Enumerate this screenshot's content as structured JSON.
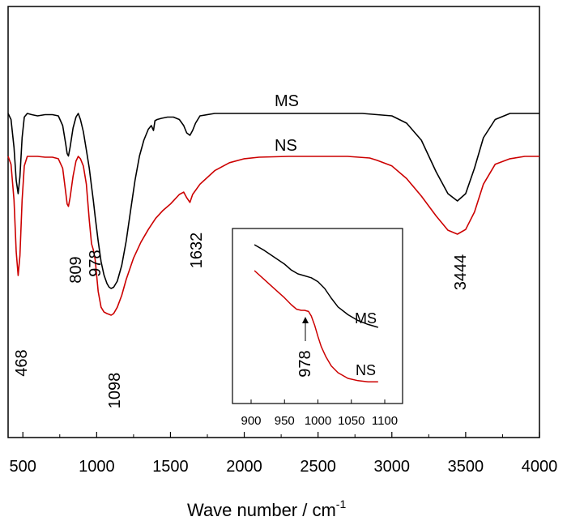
{
  "chart_data": {
    "type": "line",
    "xlabel": "Wave number / cm",
    "xlabel_sup": "-1",
    "ylabel": "",
    "xlim": [
      400,
      4000
    ],
    "grid": false,
    "legend": "none",
    "x_ticks": [
      "500",
      "1000",
      "1500",
      "2000",
      "2500",
      "3000",
      "3500",
      "4000"
    ],
    "series": [
      {
        "name": "MS",
        "color": "#000000",
        "x": [
          400,
          420,
          440,
          455,
          468,
          480,
          495,
          510,
          530,
          560,
          600,
          650,
          700,
          740,
          770,
          790,
          800,
          809,
          820,
          840,
          860,
          875,
          890,
          910,
          930,
          950,
          965,
          978,
          990,
          1010,
          1030,
          1050,
          1070,
          1085,
          1098,
          1115,
          1140,
          1170,
          1200,
          1230,
          1260,
          1290,
          1320,
          1350,
          1370,
          1385,
          1395,
          1410,
          1440,
          1480,
          1520,
          1560,
          1590,
          1610,
          1632,
          1650,
          1670,
          1700,
          1800,
          2000,
          2300,
          2500,
          2800,
          2900,
          3000,
          3100,
          3200,
          3300,
          3380,
          3444,
          3500,
          3560,
          3620,
          3700,
          3800,
          3900,
          4000
        ],
        "y": [
          0.0,
          0.05,
          0.28,
          0.55,
          0.66,
          0.52,
          0.2,
          0.03,
          0.0,
          0.01,
          0.02,
          0.01,
          0.01,
          0.02,
          0.1,
          0.25,
          0.33,
          0.35,
          0.28,
          0.12,
          0.03,
          0.0,
          0.05,
          0.15,
          0.3,
          0.45,
          0.6,
          0.72,
          0.85,
          1.05,
          1.22,
          1.33,
          1.4,
          1.43,
          1.44,
          1.43,
          1.38,
          1.25,
          1.05,
          0.8,
          0.55,
          0.35,
          0.22,
          0.13,
          0.1,
          0.14,
          0.06,
          0.05,
          0.04,
          0.03,
          0.03,
          0.05,
          0.1,
          0.16,
          0.18,
          0.14,
          0.08,
          0.02,
          0.0,
          0.0,
          0.0,
          0.0,
          0.0,
          0.01,
          0.02,
          0.08,
          0.22,
          0.48,
          0.66,
          0.72,
          0.66,
          0.45,
          0.2,
          0.05,
          0.0,
          0.0,
          0.0
        ]
      },
      {
        "name": "NS",
        "color": "#cc0000",
        "x": [
          400,
          420,
          440,
          455,
          468,
          480,
          495,
          510,
          530,
          560,
          600,
          650,
          700,
          740,
          770,
          790,
          800,
          809,
          820,
          840,
          860,
          875,
          890,
          910,
          930,
          950,
          965,
          978,
          990,
          1010,
          1030,
          1050,
          1070,
          1085,
          1098,
          1115,
          1140,
          1170,
          1200,
          1250,
          1300,
          1350,
          1400,
          1450,
          1500,
          1560,
          1590,
          1610,
          1632,
          1650,
          1700,
          1800,
          1900,
          2000,
          2100,
          2300,
          2500,
          2700,
          2850,
          2900,
          3000,
          3100,
          3200,
          3300,
          3380,
          3444,
          3500,
          3560,
          3620,
          3700,
          3800,
          3900,
          4000
        ],
        "y": [
          0.0,
          0.1,
          0.55,
          1.2,
          1.5,
          1.25,
          0.55,
          0.12,
          0.0,
          0.0,
          0.0,
          0.01,
          0.01,
          0.03,
          0.15,
          0.45,
          0.6,
          0.63,
          0.52,
          0.25,
          0.06,
          0.0,
          0.03,
          0.12,
          0.35,
          0.8,
          1.1,
          1.18,
          1.3,
          1.7,
          1.9,
          1.96,
          1.98,
          1.99,
          2.0,
          1.98,
          1.9,
          1.75,
          1.55,
          1.28,
          1.08,
          0.92,
          0.78,
          0.68,
          0.6,
          0.48,
          0.45,
          0.52,
          0.58,
          0.48,
          0.35,
          0.18,
          0.08,
          0.03,
          0.01,
          0.0,
          0.0,
          0.0,
          0.02,
          0.05,
          0.12,
          0.28,
          0.5,
          0.75,
          0.93,
          0.98,
          0.92,
          0.7,
          0.35,
          0.1,
          0.03,
          0.0,
          0.0
        ]
      }
    ],
    "annotations": [
      "468",
      "809",
      "978",
      "1098",
      "1632",
      "3444"
    ],
    "series_labels": [
      "MS",
      "NS"
    ],
    "inset": {
      "xlim": [
        900,
        1100
      ],
      "x_ticks": [
        "900",
        "950",
        "1000",
        "1050",
        "1100"
      ],
      "series": [
        {
          "name": "MS",
          "color": "#000000",
          "x": [
            905,
            920,
            935,
            950,
            960,
            970,
            980,
            990,
            1000,
            1010,
            1020,
            1030,
            1045,
            1060,
            1075,
            1090
          ],
          "y": [
            0.0,
            0.06,
            0.13,
            0.2,
            0.26,
            0.3,
            0.32,
            0.34,
            0.38,
            0.45,
            0.55,
            0.64,
            0.72,
            0.78,
            0.82,
            0.85
          ]
        },
        {
          "name": "NS",
          "color": "#cc0000",
          "x": [
            905,
            920,
            935,
            950,
            960,
            968,
            975,
            980,
            986,
            990,
            995,
            1000,
            1005,
            1012,
            1020,
            1030,
            1045,
            1060,
            1075,
            1090
          ],
          "y": [
            0.0,
            0.08,
            0.16,
            0.24,
            0.3,
            0.34,
            0.35,
            0.35,
            0.36,
            0.4,
            0.48,
            0.58,
            0.67,
            0.76,
            0.84,
            0.9,
            0.95,
            0.97,
            0.98,
            0.98
          ]
        }
      ],
      "annotation": "978",
      "series_labels": [
        "MS",
        "NS"
      ]
    }
  }
}
